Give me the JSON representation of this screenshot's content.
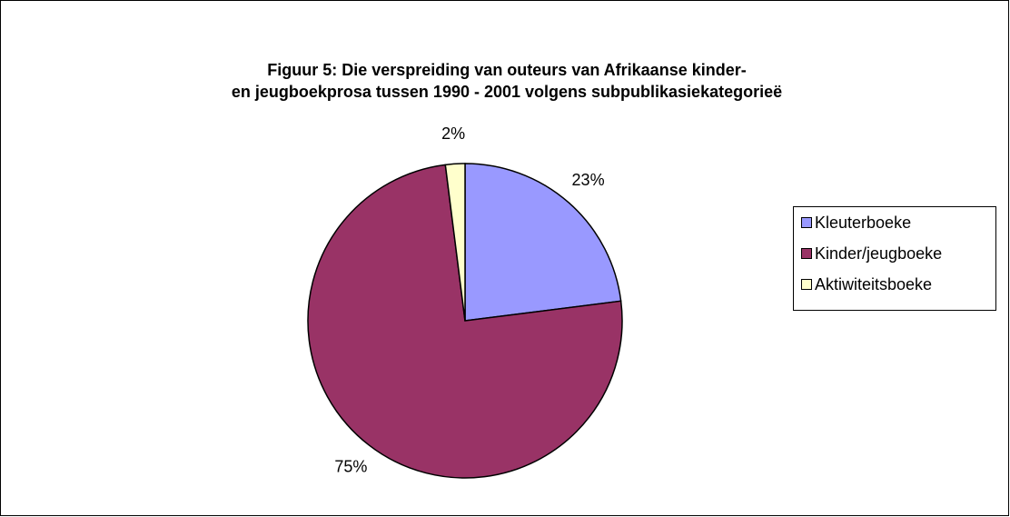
{
  "chart_data": {
    "type": "pie",
    "title": [
      "Figuur 5: Die verspreiding van outeurs van Afrikaanse kinder-",
      "en jeugboekprosa tussen 1990 - 2001 volgens subpublikasiekategorieë"
    ],
    "categories": [
      "Kleuterboeke",
      "Kinder/jeugboeke",
      "Aktiwiteitsboeke"
    ],
    "values": [
      23,
      75,
      2
    ],
    "value_labels": [
      "23%",
      "75%",
      "2%"
    ],
    "colors": [
      "#9999ff",
      "#993366",
      "#ffffcc"
    ],
    "legend": "right"
  }
}
